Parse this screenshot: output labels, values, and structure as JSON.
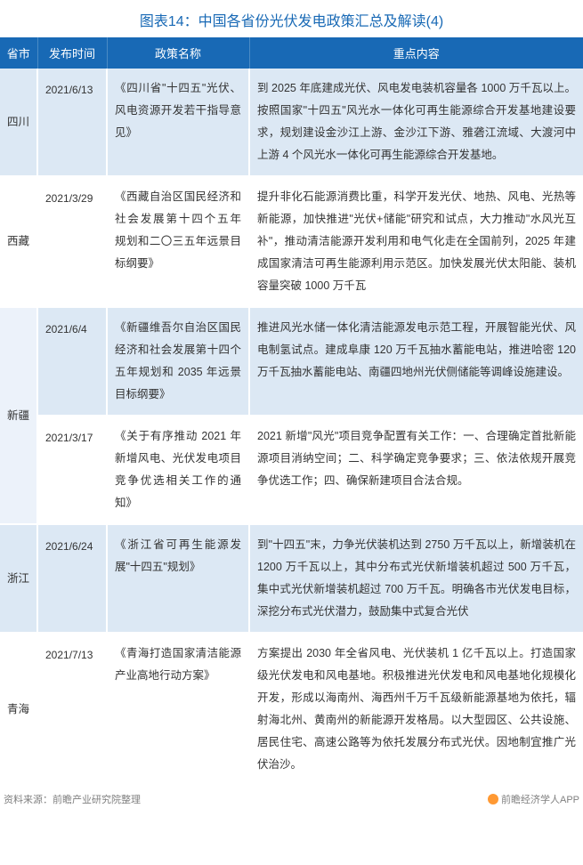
{
  "title": "图表14：中国各省份光伏发电政策汇总及解读(4)",
  "headers": {
    "province": "省市",
    "date": "发布时间",
    "name": "政策名称",
    "content": "重点内容"
  },
  "rows": [
    {
      "province": "四川",
      "rowspan": 1,
      "entries": [
        {
          "date": "2021/6/13",
          "name": "《四川省\"十四五\"光伏、风电资源开发若干指导意见》",
          "content": "到 2025 年底建成光伏、风电发电装机容量各 1000 万千瓦以上。按照国家\"十四五\"风光水一体化可再生能源综合开发基地建设要求，规划建设金沙江上游、金沙江下游、雅砻江流域、大渡河中上游 4 个风光水一体化可再生能源综合开发基地。",
          "bg": "row-blue"
        }
      ]
    },
    {
      "province": "西藏",
      "rowspan": 1,
      "entries": [
        {
          "date": "2021/3/29",
          "name": "《西藏自治区国民经济和社会发展第十四个五年　规划和二〇三五年远景目标纲要》",
          "content": "提升非化石能源消费比重，科学开发光伏、地热、风电、光热等新能源，加快推进\"光伏+储能\"研究和试点，大力推动\"水风光互补\"，推动清洁能源开发利用和电气化走在全国前列，2025 年建成国家清洁可再生能源利用示范区。加快发展光伏太阳能、装机容量突破 1000 万千瓦",
          "bg": "row-white"
        }
      ]
    },
    {
      "province": "新疆",
      "rowspan": 2,
      "entries": [
        {
          "date": "2021/6/4",
          "name": "《新疆维吾尔自治区国民经济和社会发展第十四个五年规划和 2035 年远景目标纲要》",
          "content": "推进风光水储一体化清洁能源发电示范工程，开展智能光伏、风电制氢试点。建成阜康 120 万千瓦抽水蓄能电站，推进哈密 120 万千瓦抽水蓄能电站、南疆四地州光伏侧储能等调峰设施建设。",
          "bg": "row-blue"
        },
        {
          "date": "2021/3/17",
          "name": "《关于有序推动 2021 年新增风电、光伏发电项目竞争优选相关工作的通知》",
          "content": "2021 新增\"风光\"项目竞争配置有关工作：一、合理确定首批新能源项目消纳空间；二、科学确定竞争要求；三、依法依规开展竞争优选工作；四、确保新建项目合法合规。",
          "bg": "row-white"
        }
      ]
    },
    {
      "province": "浙江",
      "rowspan": 1,
      "entries": [
        {
          "date": "2021/6/24",
          "name": "《浙江省可再生能源发展\"十四五\"规划》",
          "content": "到\"十四五\"末，力争光伏装机达到 2750 万千瓦以上，新增装机在 1200 万千瓦以上，其中分布式光伏新增装机超过 500 万千瓦，集中式光伏新增装机超过 700 万千瓦。明确各市光伏发电目标，深挖分布式光伏潜力，鼓励集中式复合光伏",
          "bg": "row-blue"
        }
      ]
    },
    {
      "province": "青海",
      "rowspan": 1,
      "entries": [
        {
          "date": "2021/7/13",
          "name": "《青海打造国家清洁能源产业高地行动方案》",
          "content": "方案提出 2030 年全省风电、光伏装机 1 亿千瓦以上。打造国家级光伏发电和风电基地。积极推进光伏发电和风电基地化规模化开发，形成以海南州、海西州千万千瓦级新能源基地为依托，辐射海北州、黄南州的新能源开发格局。以大型园区、公共设施、居民住宅、高速公路等为依托发展分布式光伏。因地制宜推广光伏治沙。",
          "bg": "row-white"
        }
      ]
    }
  ],
  "footer": {
    "source": "资料来源：前瞻产业研究院整理",
    "brand": "前瞻经济学人APP"
  },
  "colors": {
    "header_bg": "#1869b5",
    "stripe_blue": "#dce8f4",
    "stripe_white": "#ffffff",
    "title_color": "#1869b5",
    "footer_color": "#808080",
    "logo_color": "#ff9933"
  }
}
